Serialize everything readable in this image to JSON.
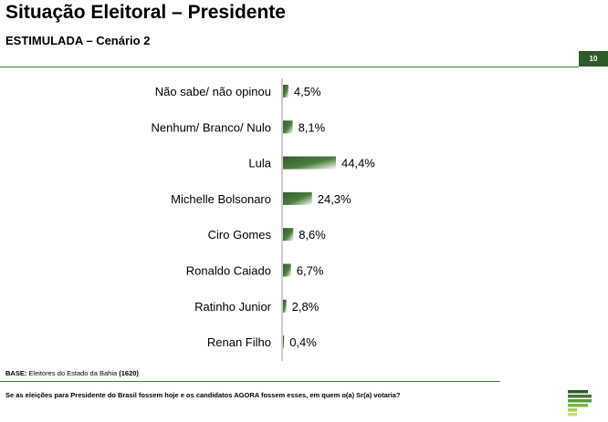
{
  "header": {
    "title": "Situação Eleitoral – Presidente",
    "subtitle": "ESTIMULADA – Cenário 2",
    "page_number": "10"
  },
  "colors": {
    "accent": "#2f5a2c",
    "bar_dark": "#2f5e2a",
    "bar_light": "#ffffff"
  },
  "chart_data": {
    "type": "bar",
    "orientation": "horizontal",
    "categories": [
      "Não sabe/ não opinou",
      "Nenhum/ Branco/ Nulo",
      "Lula",
      "Michelle Bolsonaro",
      "Ciro Gomes",
      "Ronaldo Caiado",
      "Ratinho Junior",
      "Renan Filho"
    ],
    "values": [
      4.5,
      8.1,
      44.4,
      24.3,
      8.6,
      6.7,
      2.8,
      0.4
    ],
    "value_labels": [
      "4,5%",
      "8,1%",
      "44,4%",
      "24,3%",
      "8,6%",
      "6,7%",
      "2,8%",
      "0,4%"
    ],
    "xlim": [
      0,
      100
    ],
    "grid": false,
    "legend": "none"
  },
  "footer": {
    "base_label": "BASE:",
    "base_text": " Eleitores do Estado da Bahia ",
    "base_count": "(1620)",
    "question": "Se as eleições para Presidente do Brasil fossem hoje e os candidatos AGORA fossem esses, em quem o(a) Sr(a) votaria?"
  },
  "logo": {
    "icon": "institute-logo-icon"
  }
}
